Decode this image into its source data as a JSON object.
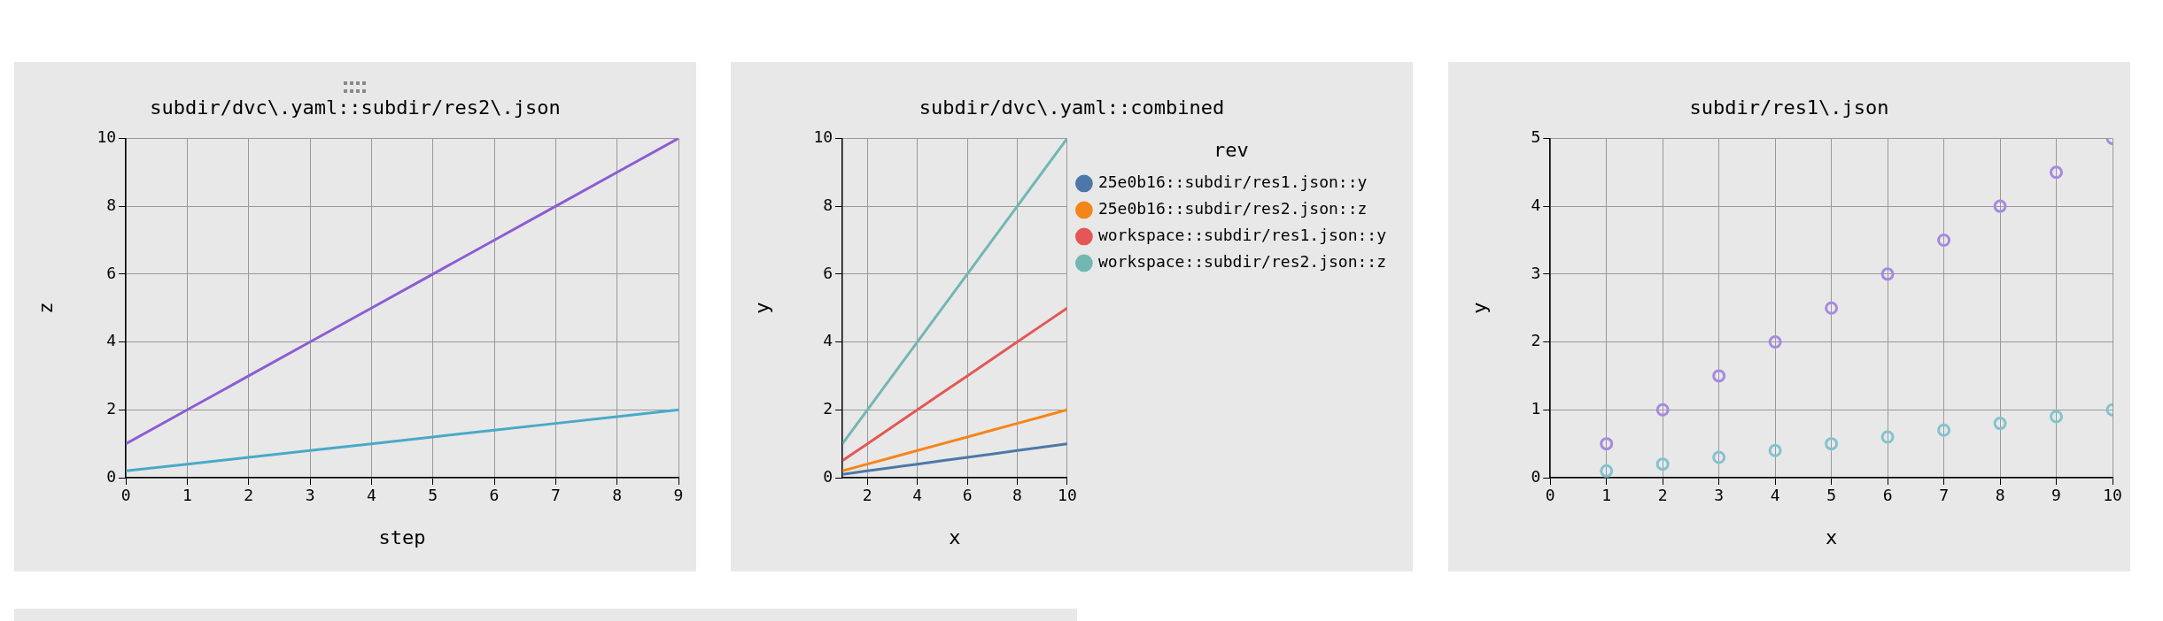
{
  "chart_data": [
    {
      "type": "line",
      "title": "subdir/dvc\\.yaml::subdir/res2\\.json",
      "xlabel": "step",
      "ylabel": "z",
      "x": [
        0,
        1,
        2,
        3,
        4,
        5,
        6,
        7,
        8,
        9
      ],
      "xlim": [
        0,
        9
      ],
      "xticks": [
        0,
        1,
        2,
        3,
        4,
        5,
        6,
        7,
        8,
        9
      ],
      "ylim": [
        0,
        10
      ],
      "yticks": [
        0,
        2,
        4,
        6,
        8,
        10
      ],
      "grid": true,
      "legend": false,
      "series": [
        {
          "color": "#8b5dd2",
          "values": [
            1,
            2,
            3,
            4,
            5,
            6,
            7,
            8,
            9,
            10
          ]
        },
        {
          "color": "#4aa9c6",
          "values": [
            0.2,
            0.4,
            0.6,
            0.8,
            1,
            1.2,
            1.4,
            1.6,
            1.8,
            2
          ]
        }
      ]
    },
    {
      "type": "line",
      "title": "subdir/dvc\\.yaml::combined",
      "xlabel": "x",
      "ylabel": "y",
      "legend_title": "rev",
      "x": [
        1,
        2,
        3,
        4,
        5,
        6,
        7,
        8,
        9,
        10
      ],
      "xlim": [
        1,
        10
      ],
      "xticks": [
        2,
        4,
        6,
        8,
        10
      ],
      "ylim": [
        0,
        10
      ],
      "yticks": [
        0,
        2,
        4,
        6,
        8,
        10
      ],
      "grid": true,
      "legend": "right",
      "series": [
        {
          "name": "25e0b16::subdir/res1.json::y",
          "color": "#4c78a8",
          "values": [
            0.1,
            0.2,
            0.3,
            0.4,
            0.5,
            0.6,
            0.7,
            0.8,
            0.9,
            1
          ]
        },
        {
          "name": "25e0b16::subdir/res2.json::z",
          "color": "#f58518",
          "values": [
            0.2,
            0.4,
            0.6,
            0.8,
            1,
            1.2,
            1.4,
            1.6,
            1.8,
            2
          ]
        },
        {
          "name": "workspace::subdir/res1.json::y",
          "color": "#e45756",
          "values": [
            0.5,
            1,
            1.5,
            2,
            2.5,
            3,
            3.5,
            4,
            4.5,
            5
          ]
        },
        {
          "name": "workspace::subdir/res2.json::z",
          "color": "#72b7b2",
          "values": [
            1,
            2,
            3,
            4,
            5,
            6,
            7,
            8,
            9,
            10
          ]
        }
      ]
    },
    {
      "type": "scatter",
      "title": "subdir/res1\\.json",
      "xlabel": "x",
      "ylabel": "y",
      "x": [
        1,
        2,
        3,
        4,
        5,
        6,
        7,
        8,
        9,
        10
      ],
      "xlim": [
        0,
        10
      ],
      "xticks": [
        0,
        1,
        2,
        3,
        4,
        5,
        6,
        7,
        8,
        9,
        10
      ],
      "ylim": [
        0,
        5
      ],
      "yticks": [
        0,
        1,
        2,
        3,
        4,
        5
      ],
      "grid": true,
      "legend": false,
      "marker": "circle",
      "series": [
        {
          "color": "#a68ae0",
          "values": [
            0.5,
            1,
            1.5,
            2,
            2.5,
            3,
            3.5,
            4,
            4.5,
            5
          ]
        },
        {
          "color": "#83c3d0",
          "values": [
            0.1,
            0.2,
            0.3,
            0.4,
            0.5,
            0.6,
            0.7,
            0.8,
            0.9,
            1
          ]
        }
      ]
    }
  ]
}
